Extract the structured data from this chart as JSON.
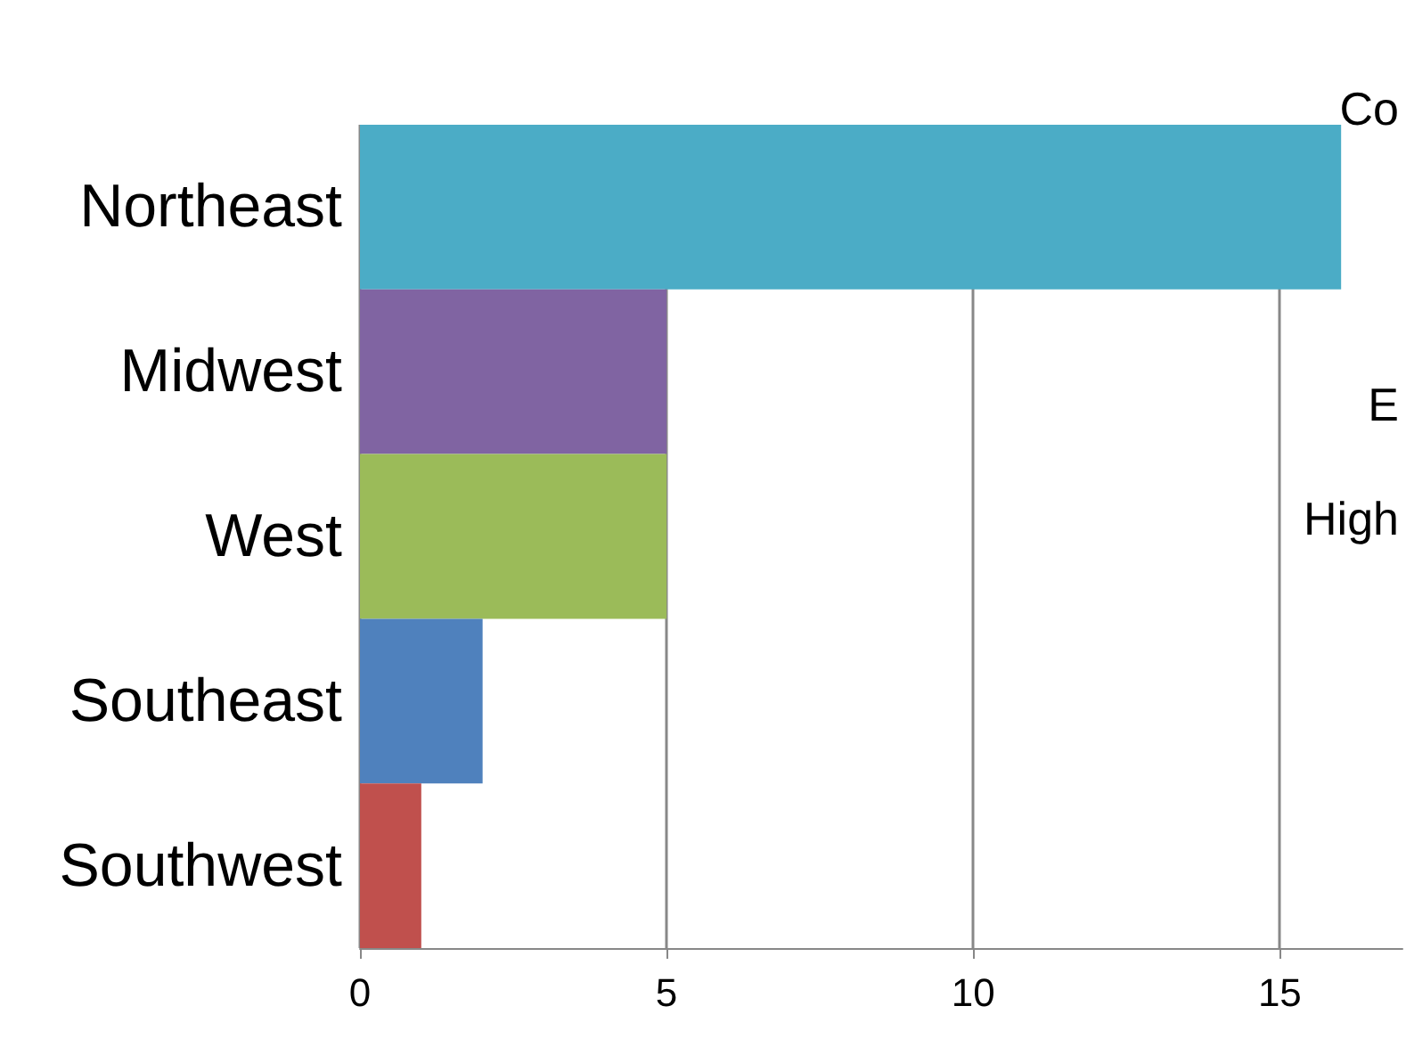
{
  "chart_data": {
    "type": "bar",
    "orientation": "horizontal",
    "categories": [
      "Northeast",
      "Midwest",
      "West",
      "Southeast",
      "Southwest"
    ],
    "values": [
      16,
      5,
      5,
      2,
      1
    ],
    "colors": [
      "#4bacc6",
      "#8064a2",
      "#9bbb59",
      "#4f81bd",
      "#c0504d"
    ],
    "xlim": [
      0,
      17
    ],
    "xticks": [
      0,
      5,
      10,
      15
    ],
    "grid": "x",
    "annotations": [
      "Co",
      "E",
      "High"
    ]
  }
}
